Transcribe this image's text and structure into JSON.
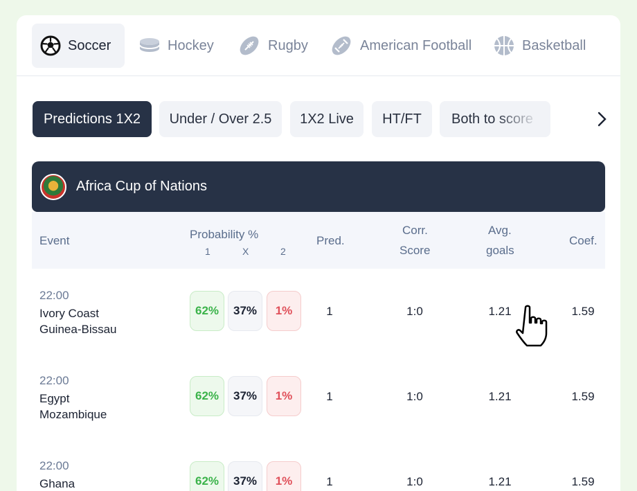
{
  "sports": [
    {
      "label": "Soccer",
      "icon": "soccer-ball-icon",
      "active": true
    },
    {
      "label": "Hockey",
      "icon": "hockey-puck-icon",
      "active": false
    },
    {
      "label": "Rugby",
      "icon": "rugby-ball-icon",
      "active": false
    },
    {
      "label": "American Football",
      "icon": "american-football-icon",
      "active": false
    },
    {
      "label": "Basketball",
      "icon": "basketball-icon",
      "active": false
    }
  ],
  "bet_tabs": [
    {
      "label": "Predictions 1X2",
      "active": true
    },
    {
      "label": "Under / Over 2.5",
      "active": false
    },
    {
      "label": "1X2 Live",
      "active": false
    },
    {
      "label": "HT/FT",
      "active": false
    },
    {
      "label": "Both to score",
      "active": false
    }
  ],
  "league": {
    "name": "Africa Cup of Nations",
    "logo_icon": "caf-logo-icon"
  },
  "columns": {
    "event": "Event",
    "probability": "Probability %",
    "prob_1": "1",
    "prob_x": "X",
    "prob_2": "2",
    "pred": "Pred.",
    "corr_score_line1": "Corr.",
    "corr_score_line2": "Score",
    "avg_goals_line1": "Avg.",
    "avg_goals_line2": "goals",
    "coef": "Coef."
  },
  "matches": [
    {
      "time": "22:00",
      "home": "Ivory Coast",
      "away": "Guinea-Bissau",
      "p1": "62%",
      "px": "37%",
      "p2": "1%",
      "pred": "1",
      "score": "1:0",
      "avg_goals": "1.21",
      "coef": "1.59"
    },
    {
      "time": "22:00",
      "home": "Egypt",
      "away": "Mozambique",
      "p1": "62%",
      "px": "37%",
      "p2": "1%",
      "pred": "1",
      "score": "1:0",
      "avg_goals": "1.21",
      "coef": "1.59"
    },
    {
      "time": "22:00",
      "home": "Ghana",
      "away": "",
      "p1": "62%",
      "px": "37%",
      "p2": "1%",
      "pred": "1",
      "score": "1:0",
      "avg_goals": "1.21",
      "coef": "1.59"
    }
  ],
  "colors": {
    "dark_navy": "#273246",
    "win_green": "#3bb34a",
    "loss_red": "#e0505a",
    "page_bg": "#eef8ea"
  }
}
